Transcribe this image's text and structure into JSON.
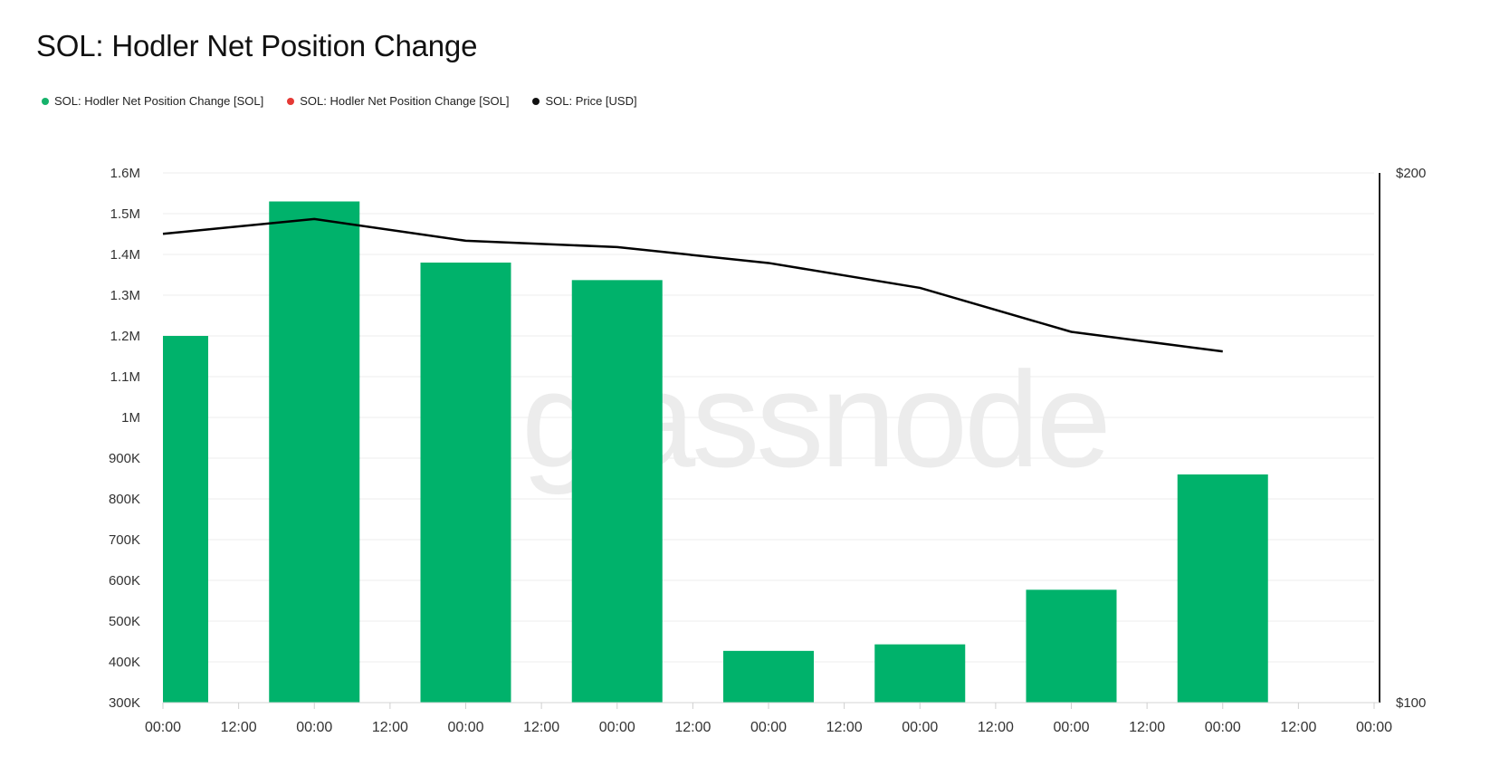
{
  "page": {
    "title": "SOL: Hodler Net Position Change"
  },
  "legend": [
    {
      "label": "SOL: Hodler Net Position Change [SOL]",
      "color": "#16b26b"
    },
    {
      "label": "SOL: Hodler Net Position Change [SOL]",
      "color": "#e53935"
    },
    {
      "label": "SOL: Price [USD]",
      "color": "#111111"
    }
  ],
  "watermark": "glassnode",
  "chart_data": {
    "type": "bar",
    "title": "SOL: Hodler Net Position Change",
    "xlabel": "",
    "ylabel": "",
    "x_tick_labels": [
      "00:00",
      "12:00",
      "00:00",
      "12:00",
      "00:00",
      "12:00",
      "00:00",
      "12:00",
      "00:00",
      "12:00",
      "00:00",
      "12:00",
      "00:00",
      "12:00",
      "00:00",
      "12:00",
      "00:00"
    ],
    "y_left_tick_labels": [
      "300K",
      "400K",
      "500K",
      "600K",
      "700K",
      "800K",
      "900K",
      "1M",
      "1.1M",
      "1.2M",
      "1.3M",
      "1.4M",
      "1.5M",
      "1.6M"
    ],
    "y_right_tick_labels": [
      "$100",
      "$200"
    ],
    "ylim_left": [
      300000,
      1600000
    ],
    "ylim_right": [
      100,
      200
    ],
    "x_range_half_days": [
      0,
      16
    ],
    "grid": true,
    "legend_position": "top-left",
    "series": [
      {
        "name": "SOL: Hodler Net Position Change [SOL]",
        "type": "bar",
        "color": "#00b26b",
        "axis": "left",
        "points": [
          {
            "x_half_days": 0.3,
            "value": 1200000,
            "clipped_left": true
          },
          {
            "x_half_days": 2,
            "value": 1530000
          },
          {
            "x_half_days": 4,
            "value": 1380000
          },
          {
            "x_half_days": 6,
            "value": 1337000
          },
          {
            "x_half_days": 8,
            "value": 427000
          },
          {
            "x_half_days": 10,
            "value": 443000
          },
          {
            "x_half_days": 12,
            "value": 577000
          },
          {
            "x_half_days": 14,
            "value": 860000
          }
        ]
      },
      {
        "name": "SOL: Hodler Net Position Change [SOL]",
        "type": "bar",
        "color": "#e53935",
        "axis": "left",
        "points": []
      },
      {
        "name": "SOL: Price [USD]",
        "type": "line",
        "color": "#000000",
        "axis": "right",
        "points": [
          {
            "x_half_days": 0,
            "value": 188.5
          },
          {
            "x_half_days": 2,
            "value": 191.3
          },
          {
            "x_half_days": 4,
            "value": 187.2
          },
          {
            "x_half_days": 6,
            "value": 186.0
          },
          {
            "x_half_days": 8,
            "value": 183.0
          },
          {
            "x_half_days": 10,
            "value": 178.3
          },
          {
            "x_half_days": 12,
            "value": 170.0
          },
          {
            "x_half_days": 14,
            "value": 166.3
          }
        ]
      }
    ]
  }
}
